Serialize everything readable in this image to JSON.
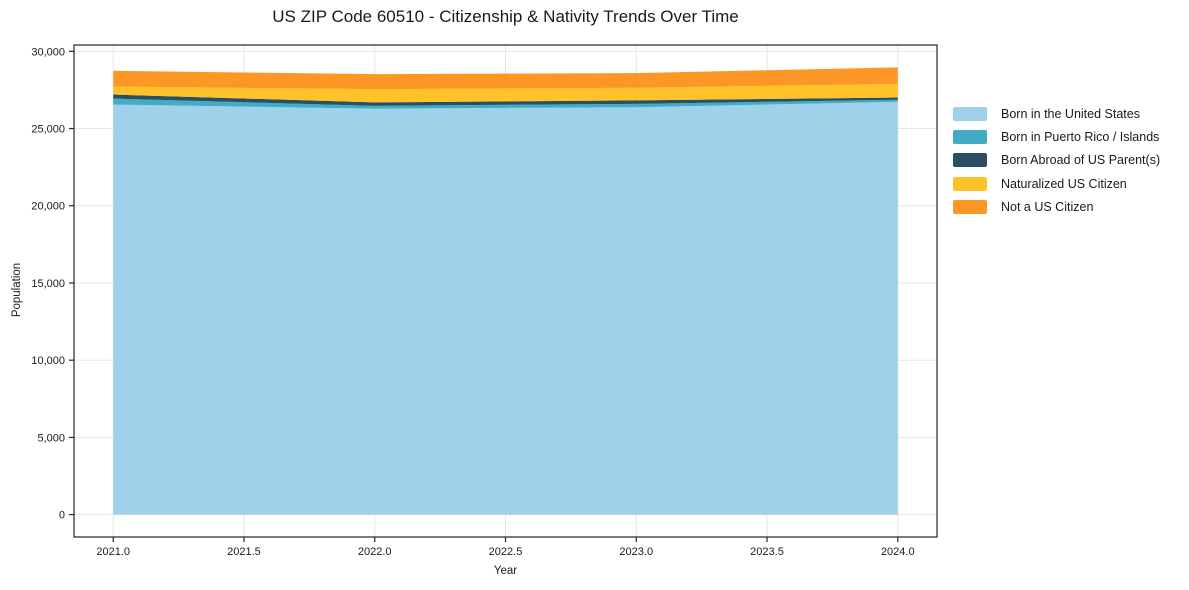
{
  "chart_data": {
    "type": "area",
    "stacked": true,
    "title": "US ZIP Code 60510 - Citizenship & Nativity Trends Over Time",
    "xlabel": "Year",
    "ylabel": "Population",
    "x": [
      2021,
      2022,
      2023,
      2024
    ],
    "series": [
      {
        "name": "Born in the United States",
        "color": "#8ecae6",
        "values": [
          26550,
          26290,
          26380,
          26730
        ]
      },
      {
        "name": "Born in Puerto Rico / Islands",
        "color": "#219ebc",
        "values": [
          390,
          180,
          220,
          130
        ]
      },
      {
        "name": "Born Abroad of US Parent(s)",
        "color": "#023047",
        "values": [
          260,
          220,
          220,
          150
        ]
      },
      {
        "name": "Naturalized US Citizen",
        "color": "#ffb703",
        "values": [
          520,
          860,
          820,
          880
        ]
      },
      {
        "name": "Not a US Citizen",
        "color": "#fb8500",
        "values": [
          1020,
          970,
          950,
          1070
        ]
      }
    ],
    "xlim": [
      2020.85,
      2024.15
    ],
    "ylim": [
      -1448,
      30408
    ],
    "x_ticks": [
      {
        "value": 2021.0,
        "label": "2021.0"
      },
      {
        "value": 2021.5,
        "label": "2021.5"
      },
      {
        "value": 2022.0,
        "label": "2022.0"
      },
      {
        "value": 2022.5,
        "label": "2022.5"
      },
      {
        "value": 2023.0,
        "label": "2023.0"
      },
      {
        "value": 2023.5,
        "label": "2023.5"
      },
      {
        "value": 2024.0,
        "label": "2024.0"
      }
    ],
    "y_ticks": [
      {
        "value": 0,
        "label": "0"
      },
      {
        "value": 5000,
        "label": "5,000"
      },
      {
        "value": 10000,
        "label": "10,000"
      },
      {
        "value": 15000,
        "label": "15,000"
      },
      {
        "value": 20000,
        "label": "20,000"
      },
      {
        "value": 25000,
        "label": "25,000"
      },
      {
        "value": 30000,
        "label": "30,000"
      }
    ],
    "grid": true,
    "legend_position": "right",
    "colors": {
      "grid": "#e6e6e6",
      "axis": "#262626",
      "text": "#1a1a1a"
    }
  }
}
